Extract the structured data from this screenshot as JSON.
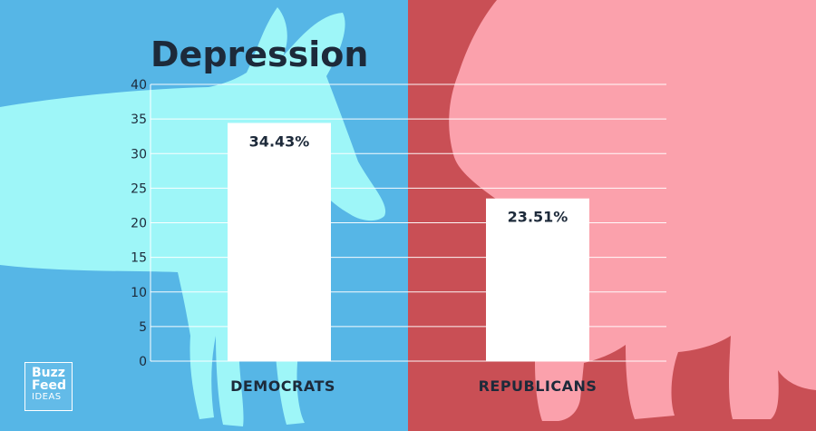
{
  "colors": {
    "left_bg": "#56b6e6",
    "right_bg": "#c94f55",
    "donkey": "#9ef6f8",
    "elephant": "#fba1ac",
    "bar": "#ffffff",
    "text_dark": "#1d2a3a"
  },
  "chart_data": {
    "type": "bar",
    "title": "Depression",
    "categories": [
      "DEMOCRATS",
      "REPUBLICANS"
    ],
    "values": [
      34.43,
      23.51
    ],
    "value_labels": [
      "34.43%",
      "23.51%"
    ],
    "ylim": [
      0,
      40
    ],
    "yticks": [
      0,
      5,
      10,
      15,
      20,
      25,
      30,
      35,
      40
    ],
    "grid": true,
    "xlabel": "",
    "ylabel": ""
  },
  "logo": {
    "line1": "Buzz",
    "line2": "Feed",
    "line3": "IDEAS"
  },
  "decor": {
    "left_icon": "donkey-icon",
    "right_icon": "elephant-icon"
  }
}
